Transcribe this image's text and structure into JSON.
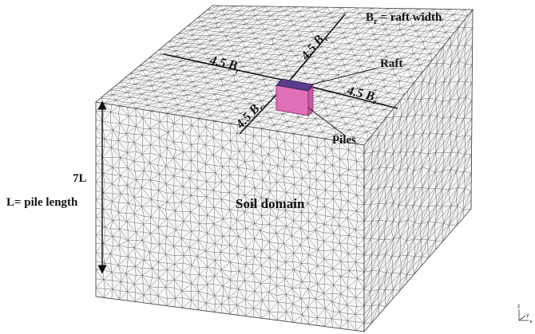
{
  "labels": {
    "raft_width": {
      "symbol": "B",
      "subscript": "r",
      "definition": "= raft width"
    },
    "dimensions": [
      {
        "coefficient": "4.5",
        "symbol": "B",
        "subscript": "r"
      },
      {
        "coefficient": "4.5",
        "symbol": "B",
        "subscript": "r"
      },
      {
        "coefficient": "4.5",
        "symbol": "B",
        "subscript": "r"
      },
      {
        "coefficient": "4.5",
        "symbol": "B",
        "subscript": "r"
      }
    ],
    "raft": "Raft",
    "piles": "Piles",
    "height": "7L",
    "pile_length": "L= pile length",
    "soil_domain": "Soil domain",
    "axes": {
      "z": "z",
      "y": "y",
      "x": "x"
    }
  }
}
